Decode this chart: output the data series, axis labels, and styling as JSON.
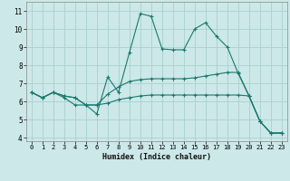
{
  "xlabel": "Humidex (Indice chaleur)",
  "bg_color": "#cce8e8",
  "grid_color": "#aad0d0",
  "line_color": "#1a7a6e",
  "xlim": [
    -0.5,
    23.5
  ],
  "ylim": [
    3.8,
    11.5
  ],
  "xticks": [
    0,
    1,
    2,
    3,
    4,
    5,
    6,
    7,
    8,
    9,
    10,
    11,
    12,
    13,
    14,
    15,
    16,
    17,
    18,
    19,
    20,
    21,
    22,
    23
  ],
  "yticks": [
    4,
    5,
    6,
    7,
    8,
    9,
    10,
    11
  ],
  "series": [
    [
      6.5,
      6.2,
      6.5,
      6.2,
      5.8,
      5.8,
      5.3,
      7.35,
      6.5,
      8.7,
      10.85,
      10.7,
      8.9,
      8.85,
      8.85,
      10.0,
      10.35,
      9.6,
      9.0,
      7.55,
      6.3,
      4.9,
      4.25,
      4.25
    ],
    [
      6.5,
      6.2,
      6.5,
      6.3,
      6.2,
      5.8,
      5.8,
      6.4,
      6.8,
      7.1,
      7.2,
      7.25,
      7.25,
      7.25,
      7.25,
      7.3,
      7.4,
      7.5,
      7.6,
      7.6,
      6.3,
      4.9,
      4.25,
      4.25
    ],
    [
      6.5,
      6.2,
      6.5,
      6.3,
      6.2,
      5.8,
      5.8,
      5.9,
      6.1,
      6.2,
      6.3,
      6.35,
      6.35,
      6.35,
      6.35,
      6.35,
      6.35,
      6.35,
      6.35,
      6.35,
      6.3,
      4.9,
      4.25,
      4.25
    ]
  ]
}
